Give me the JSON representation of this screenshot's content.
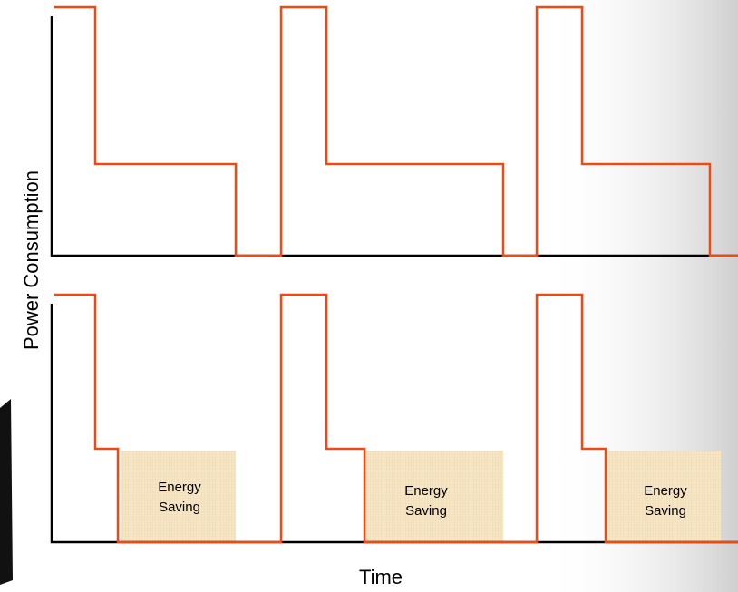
{
  "axis_labels": {
    "y": "Power Consumption",
    "x": "Time"
  },
  "annotations": [
    "Energy Saving",
    "Energy Saving",
    "Energy Saving"
  ]
}
